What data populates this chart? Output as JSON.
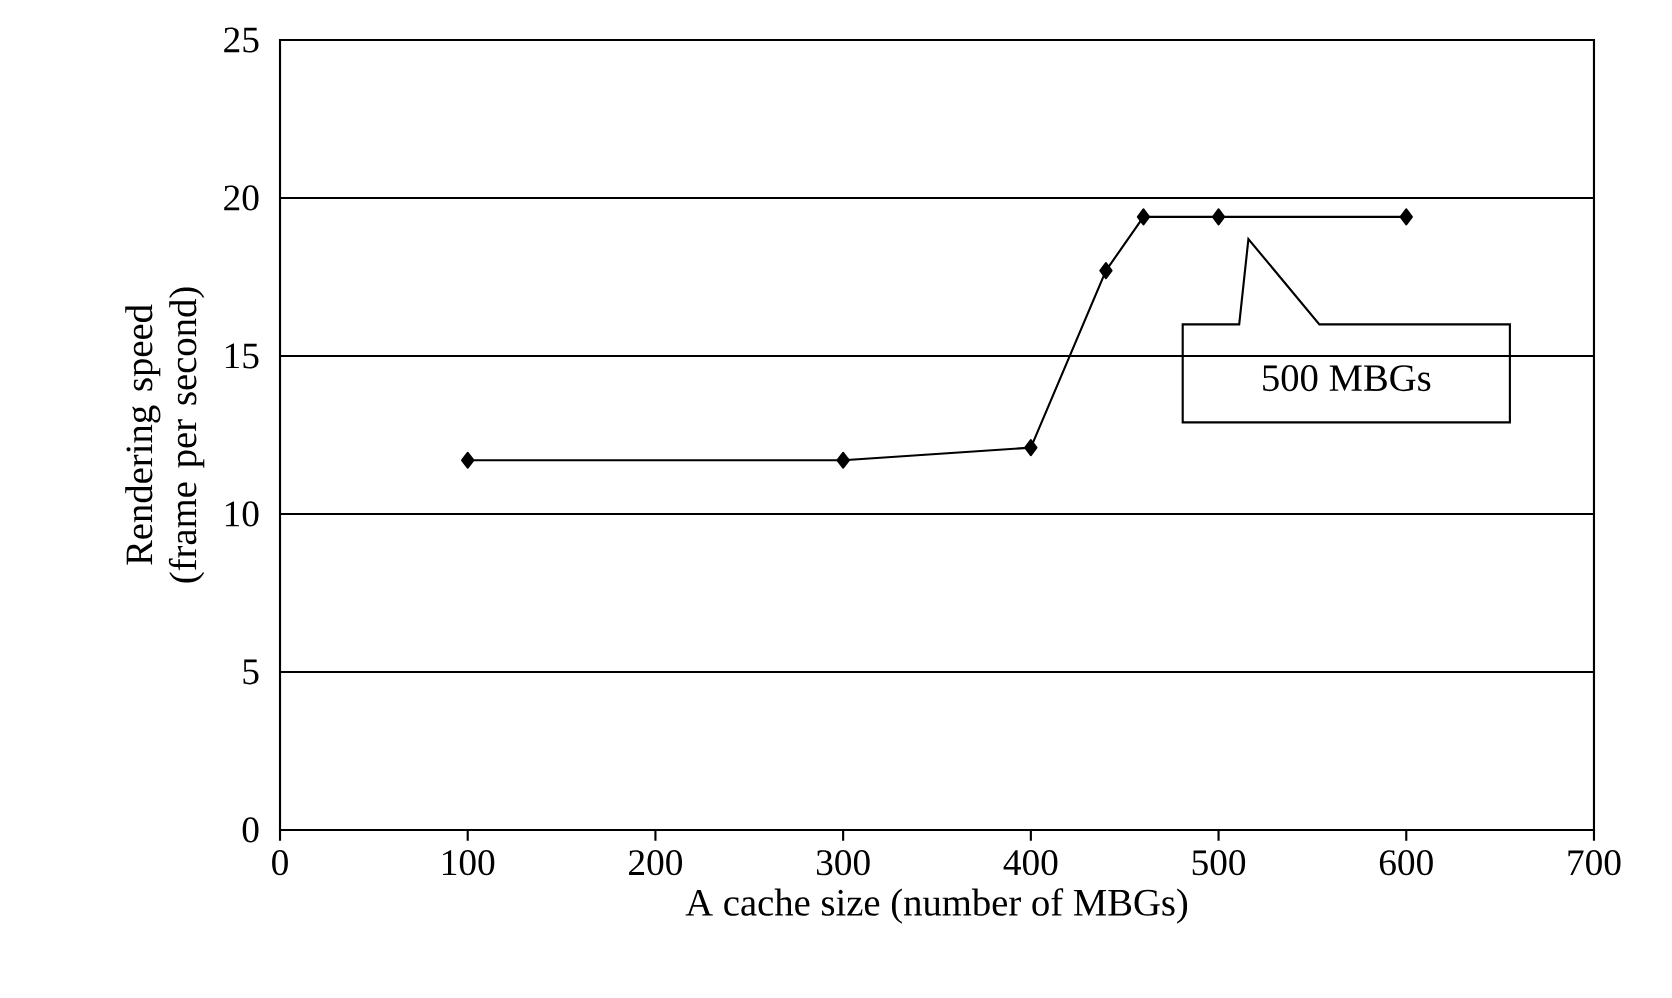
{
  "chart_data": {
    "type": "line",
    "xlabel": "A cache size (number of MBGs)",
    "ylabel": "Rendering speed (frame per second)",
    "x": [
      100,
      300,
      400,
      440,
      460,
      500,
      600
    ],
    "series": [
      {
        "color": "#000000",
        "values": [
          11.7,
          11.7,
          12.1,
          17.7,
          19.4,
          19.4,
          19.4
        ]
      }
    ],
    "xlim": [
      0,
      700
    ],
    "xticks": [
      0,
      100,
      200,
      300,
      400,
      500,
      600,
      700
    ],
    "ylim": [
      0,
      25
    ],
    "yticks": [
      0,
      5,
      10,
      15,
      20,
      25
    ],
    "grid": "y",
    "marker": "diamond",
    "line_style": "solid",
    "annotations": [
      "500 MBGs"
    ]
  }
}
